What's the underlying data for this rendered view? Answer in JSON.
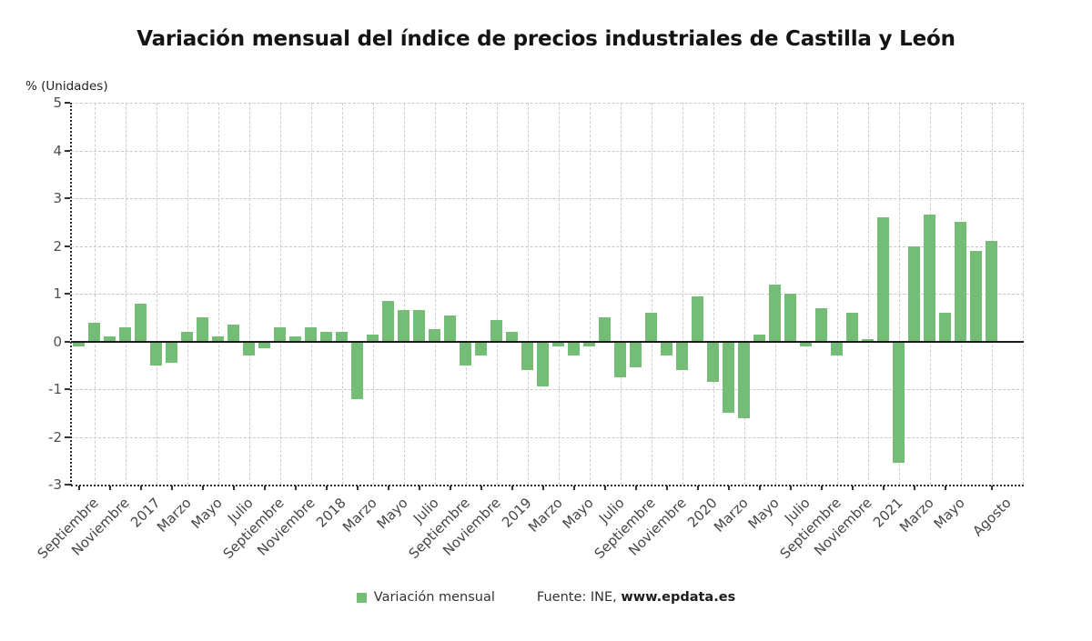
{
  "title": "Variación mensual del índice de precios industriales de Castilla y León",
  "y_axis_unit_label": "% (Unidades)",
  "legend": {
    "series_label": "Variación mensual",
    "source_prefix": "Fuente: INE, ",
    "source_link": "www.epdata.es"
  },
  "colors": {
    "bar": "#73bd77",
    "grid": "#c7c7c7",
    "axis": "#2d2d2d",
    "zero_line": "#1c1c1c",
    "tick_text": "#4f4f4f",
    "title_text": "#141414"
  },
  "chart_data": {
    "type": "bar",
    "title": "Variación mensual del índice de precios industriales de Castilla y León",
    "xlabel": "",
    "ylabel": "% (Unidades)",
    "ylim": [
      -3,
      5
    ],
    "y_ticks": [
      5,
      4,
      3,
      2,
      1,
      0,
      -1,
      -2,
      -3
    ],
    "grid": true,
    "legend_position": "bottom",
    "series": [
      {
        "name": "Variación mensual",
        "values": [
          -0.1,
          0.4,
          0.1,
          0.3,
          0.8,
          -0.5,
          -0.45,
          0.2,
          0.5,
          0.1,
          0.35,
          -0.3,
          -0.15,
          0.3,
          0.1,
          0.3,
          0.2,
          0.2,
          -1.2,
          0.15,
          0.85,
          0.65,
          0.65,
          0.25,
          0.55,
          -0.5,
          -0.3,
          0.45,
          0.2,
          -0.6,
          -0.95,
          -0.1,
          -0.3,
          -0.1,
          0.5,
          -0.75,
          -0.55,
          0.6,
          -0.3,
          -0.6,
          0.95,
          -0.85,
          -1.5,
          -1.6,
          0.15,
          1.2,
          1.0,
          -0.1,
          0.7,
          -0.3,
          0.6,
          0.05,
          2.6,
          -2.55,
          2.0,
          2.65,
          0.6,
          2.5,
          1.9,
          2.1
        ]
      }
    ],
    "x_tick_labels": [
      {
        "index": 0,
        "label": "Septiembre"
      },
      {
        "index": 2,
        "label": "Noviembre"
      },
      {
        "index": 4,
        "label": "2017"
      },
      {
        "index": 6,
        "label": "Marzo"
      },
      {
        "index": 8,
        "label": "Mayo"
      },
      {
        "index": 10,
        "label": "Julio"
      },
      {
        "index": 12,
        "label": "Septiembre"
      },
      {
        "index": 14,
        "label": "Noviembre"
      },
      {
        "index": 16,
        "label": "2018"
      },
      {
        "index": 18,
        "label": "Marzo"
      },
      {
        "index": 20,
        "label": "Mayo"
      },
      {
        "index": 22,
        "label": "Julio"
      },
      {
        "index": 24,
        "label": "Septiembre"
      },
      {
        "index": 26,
        "label": "Noviembre"
      },
      {
        "index": 28,
        "label": "2019"
      },
      {
        "index": 30,
        "label": "Marzo"
      },
      {
        "index": 32,
        "label": "Mayo"
      },
      {
        "index": 34,
        "label": "Julio"
      },
      {
        "index": 36,
        "label": "Septiembre"
      },
      {
        "index": 38,
        "label": "Noviembre"
      },
      {
        "index": 40,
        "label": "2020"
      },
      {
        "index": 42,
        "label": "Marzo"
      },
      {
        "index": 44,
        "label": "Mayo"
      },
      {
        "index": 46,
        "label": "Julio"
      },
      {
        "index": 48,
        "label": "Septiembre"
      },
      {
        "index": 50,
        "label": "Noviembre"
      },
      {
        "index": 52,
        "label": "2021"
      },
      {
        "index": 54,
        "label": "Marzo"
      },
      {
        "index": 56,
        "label": "Mayo"
      },
      {
        "index": 59,
        "label": "Agosto"
      }
    ]
  }
}
